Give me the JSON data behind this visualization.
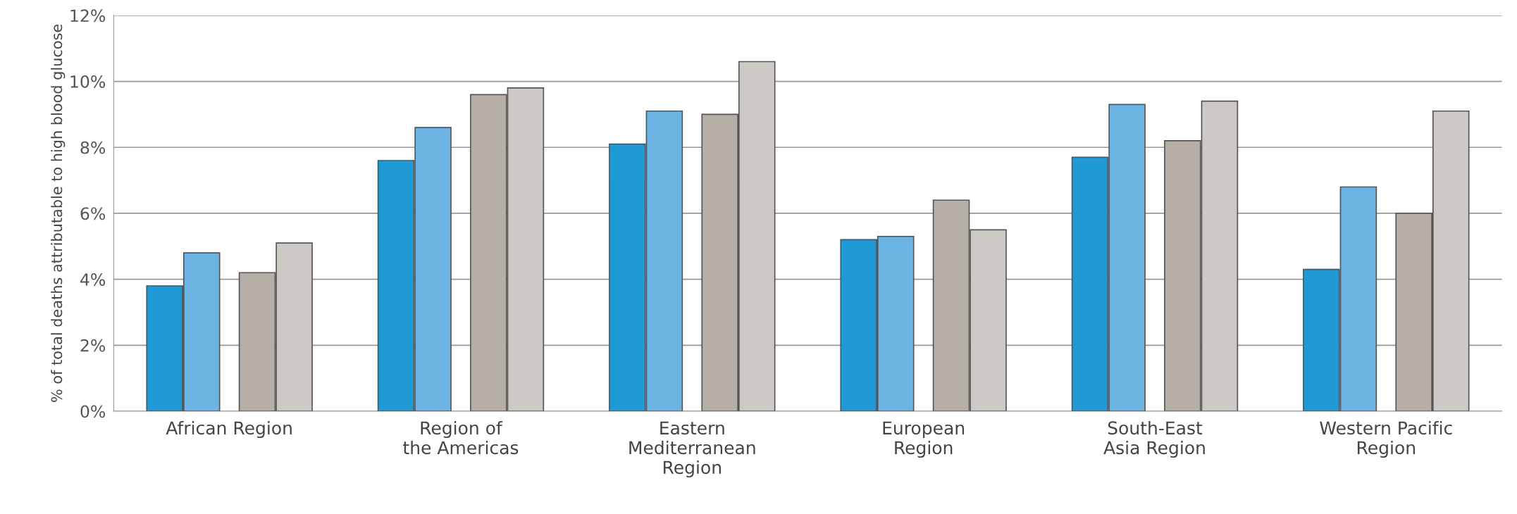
{
  "chart_data": {
    "type": "bar",
    "ylabel": "% of total deaths attributable to high blood glucose",
    "categories": [
      "African Region",
      "Region of\nthe Americas",
      "Eastern\nMediterranean\nRegion",
      "European\nRegion",
      "South-East\nAsia Region",
      "Western Pacific\nRegion"
    ],
    "series": [
      {
        "color": "#1f9ad6",
        "values": [
          3.8,
          7.6,
          8.1,
          5.2,
          7.7,
          4.3
        ]
      },
      {
        "color": "#6cb4e4",
        "values": [
          4.8,
          8.6,
          9.1,
          5.3,
          9.3,
          6.8
        ]
      },
      {
        "color": "#b5afa8",
        "values": [
          4.2,
          9.6,
          9.0,
          6.4,
          8.2,
          6.0
        ]
      },
      {
        "color": "#cdc9c4",
        "values": [
          5.1,
          9.8,
          10.6,
          5.5,
          9.4,
          9.1
        ]
      }
    ],
    "ylim": [
      0,
      12
    ],
    "yticks": [
      {
        "value": 0,
        "label": "0%"
      },
      {
        "value": 2,
        "label": "2%"
      },
      {
        "value": 4,
        "label": "4%"
      },
      {
        "value": 6,
        "label": "6%"
      },
      {
        "value": 8,
        "label": "8%"
      },
      {
        "value": 10,
        "label": "10%"
      },
      {
        "value": 12,
        "label": "12%"
      }
    ],
    "grid": "y"
  }
}
